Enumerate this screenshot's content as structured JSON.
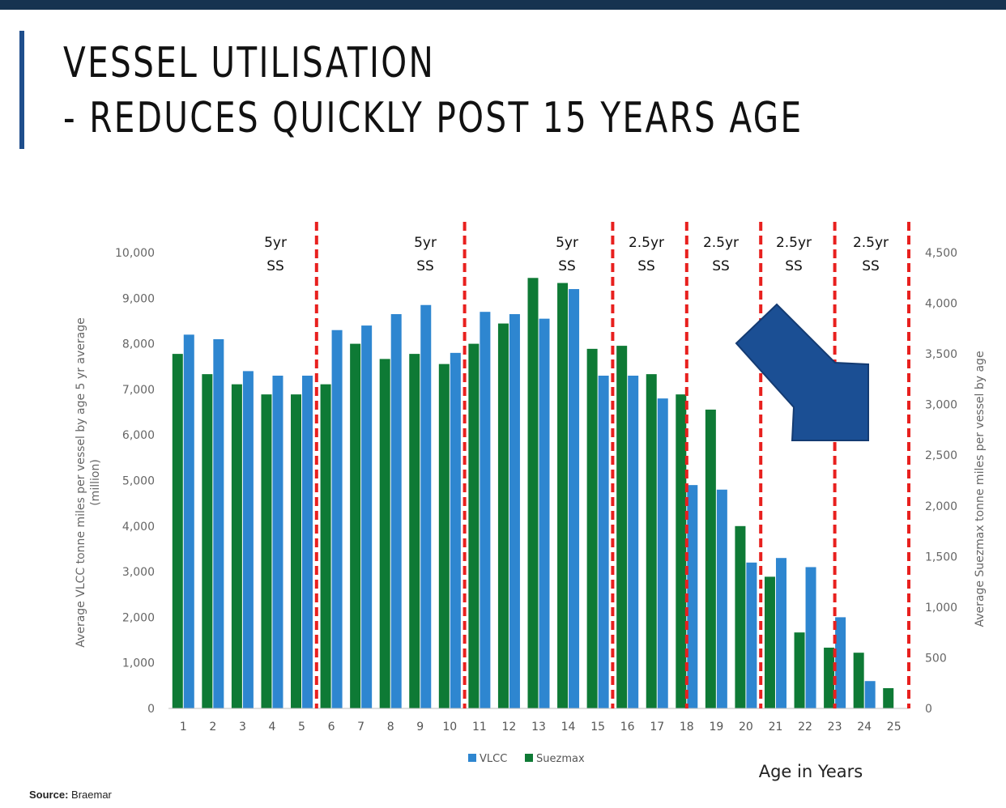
{
  "page": {
    "title_line1": "VESSEL UTILISATION",
    "title_line2": "- REDUCES QUICKLY POST 15 YEARS AGE",
    "source_label": "Source:",
    "source_value": "Braemar",
    "colors": {
      "top_bar": "#163350",
      "title_rule": "#1f4e8c"
    }
  },
  "chart_data": {
    "type": "bar",
    "categories": [
      "1",
      "2",
      "3",
      "4",
      "5",
      "6",
      "7",
      "8",
      "9",
      "10",
      "11",
      "12",
      "13",
      "14",
      "15",
      "16",
      "17",
      "18",
      "19",
      "20",
      "21",
      "22",
      "23",
      "24",
      "25"
    ],
    "series": [
      {
        "name": "VLCC",
        "axis": "left",
        "color": "#2e86d0",
        "values": [
          8200,
          8100,
          7400,
          7300,
          7300,
          8300,
          8400,
          8650,
          8850,
          7800,
          8700,
          8650,
          8550,
          9200,
          7300,
          7300,
          6800,
          4900,
          4800,
          3200,
          3300,
          3100,
          2000,
          600,
          null
        ]
      },
      {
        "name": "Suezmax",
        "axis": "right",
        "color": "#0e7a35",
        "values": [
          3500,
          3300,
          3200,
          3100,
          3100,
          3200,
          3600,
          3450,
          3500,
          3400,
          3600,
          3800,
          4250,
          4200,
          3550,
          3580,
          3300,
          3100,
          2950,
          1800,
          1300,
          750,
          600,
          550,
          200
        ]
      }
    ],
    "ylabel": "Average VLCC tonne miles per vessel by age 5 yr average (million)",
    "y2label": "Average Suezmax tonne miles per vessel by age",
    "xlabel": "Age in Years",
    "ylim": [
      0,
      10000
    ],
    "y2lim": [
      0,
      4500
    ],
    "yticks": [
      "0",
      "1,000",
      "2,000",
      "3,000",
      "4,000",
      "5,000",
      "6,000",
      "7,000",
      "8,000",
      "9,000",
      "10,000"
    ],
    "y2ticks": [
      "0",
      "500",
      "1,000",
      "1,500",
      "2,000",
      "2,500",
      "3,000",
      "3,500",
      "4,000",
      "4,500"
    ],
    "legend": "bottom-center",
    "grid": false,
    "annotations": [
      {
        "after_age": 5,
        "line1": "5yr",
        "line2": "SS"
      },
      {
        "after_age": 10,
        "line1": "5yr",
        "line2": "SS"
      },
      {
        "after_age": 15,
        "line1": "5yr",
        "line2": "SS"
      },
      {
        "after_age": 17.5,
        "line1": "2.5yr",
        "line2": "SS"
      },
      {
        "after_age": 20,
        "line1": "2.5yr",
        "line2": "SS"
      },
      {
        "after_age": 22.5,
        "line1": "2.5yr",
        "line2": "SS"
      },
      {
        "after_age": 25,
        "line1": "2.5yr",
        "line2": "SS"
      }
    ],
    "annotation_line_color": "#e8201e",
    "arrow": {
      "direction": "down-right",
      "color": "#1b4f94"
    }
  }
}
